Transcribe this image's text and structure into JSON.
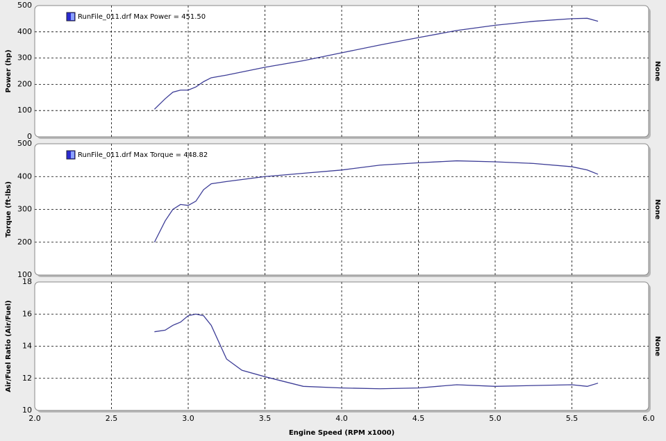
{
  "chart_data": [
    {
      "type": "line",
      "ylabel": "Power (hp)",
      "side_label": "None",
      "series": [
        {
          "name": "RunFile_011.drf Max Power = 451.50",
          "color": "#3c3c96",
          "x": [
            2.78,
            2.85,
            2.9,
            2.95,
            3.0,
            3.05,
            3.1,
            3.15,
            3.25,
            3.5,
            3.75,
            4.0,
            4.25,
            4.5,
            4.75,
            5.0,
            5.25,
            5.5,
            5.6,
            5.67
          ],
          "values": [
            105,
            145,
            170,
            178,
            178,
            190,
            210,
            225,
            235,
            265,
            290,
            320,
            350,
            378,
            405,
            425,
            440,
            450,
            451.5,
            440
          ]
        }
      ],
      "xlim": [
        2,
        6
      ],
      "xticks": [
        2,
        2.5,
        3,
        3.5,
        4,
        4.5,
        5,
        5.5,
        6
      ],
      "ylim": [
        0,
        500
      ],
      "yticks": [
        0,
        100,
        200,
        300,
        400,
        500
      ],
      "grid": true
    },
    {
      "type": "line",
      "ylabel": "Torque (ft-lbs)",
      "side_label": "None",
      "series": [
        {
          "name": "RunFile_011.drf Max Torque = 448.82",
          "color": "#3c3c96",
          "x": [
            2.78,
            2.85,
            2.9,
            2.95,
            3.0,
            3.05,
            3.1,
            3.15,
            3.25,
            3.5,
            3.75,
            4.0,
            4.25,
            4.5,
            4.75,
            5.0,
            5.25,
            5.5,
            5.6,
            5.67
          ],
          "values": [
            200,
            265,
            300,
            315,
            312,
            325,
            360,
            378,
            385,
            400,
            410,
            420,
            435,
            442,
            448,
            445,
            440,
            430,
            420,
            407
          ]
        }
      ],
      "xlim": [
        2,
        6
      ],
      "xticks": [
        2,
        2.5,
        3,
        3.5,
        4,
        4.5,
        5,
        5.5,
        6
      ],
      "ylim": [
        100,
        500
      ],
      "yticks": [
        100,
        200,
        300,
        400,
        500
      ],
      "grid": true
    },
    {
      "type": "line",
      "ylabel": "Air/Fuel Ratio (Air/Fuel)",
      "side_label": "None",
      "xlabel": "Engine Speed (RPM x1000)",
      "series": [
        {
          "name": null,
          "color": "#3c3c96",
          "x": [
            2.78,
            2.85,
            2.9,
            2.95,
            3.0,
            3.05,
            3.1,
            3.15,
            3.25,
            3.35,
            3.5,
            3.75,
            4.0,
            4.25,
            4.5,
            4.75,
            5.0,
            5.25,
            5.5,
            5.6,
            5.67
          ],
          "values": [
            14.9,
            15.0,
            15.3,
            15.5,
            15.9,
            16.0,
            15.9,
            15.3,
            13.2,
            12.5,
            12.1,
            11.5,
            11.4,
            11.35,
            11.4,
            11.6,
            11.5,
            11.55,
            11.6,
            11.5,
            11.7
          ]
        }
      ],
      "xlim": [
        2,
        6
      ],
      "xticks": [
        {
          "value": 2,
          "label": "2.0"
        },
        2.5,
        {
          "value": 3,
          "label": "3.0"
        },
        3.5,
        {
          "value": 4,
          "label": "4.0"
        },
        4.5,
        {
          "value": 5,
          "label": "5.0"
        },
        5.5,
        {
          "value": 6,
          "label": "6.0"
        }
      ],
      "ylim": [
        10,
        18
      ],
      "yticks": [
        10,
        12,
        14,
        16,
        18
      ],
      "grid": true
    }
  ]
}
